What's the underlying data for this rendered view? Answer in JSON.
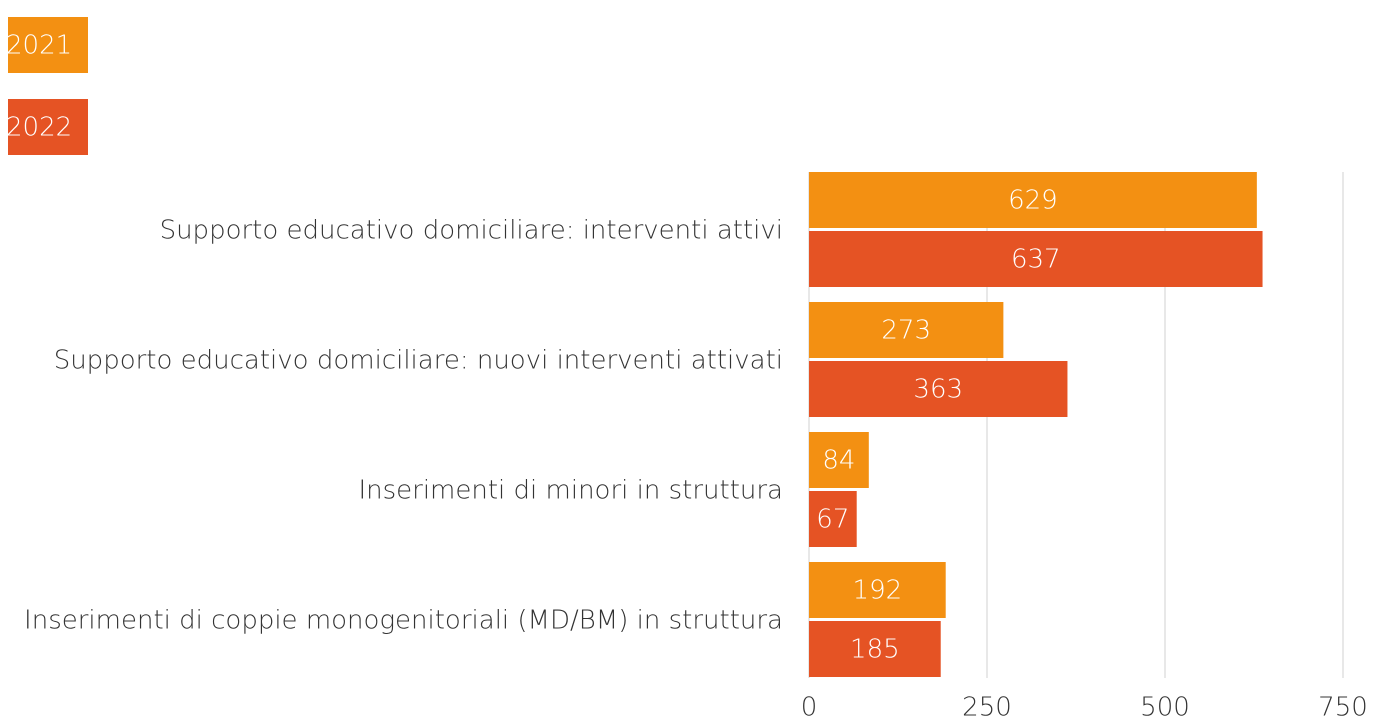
{
  "chart_data": {
    "type": "bar",
    "orientation": "horizontal",
    "categories": [
      "Supporto educativo domiciliare: interventi attivi",
      "Supporto educativo domiciliare: nuovi interventi attivati",
      "Inserimenti di minori in struttura",
      "Inserimenti di coppie monogenitoriali (MD/BM) in struttura"
    ],
    "series": [
      {
        "name": "2021",
        "color": "#f39012",
        "values": [
          629,
          273,
          84,
          192
        ]
      },
      {
        "name": "2022",
        "color": "#e55324",
        "values": [
          637,
          363,
          67,
          185
        ]
      }
    ],
    "xlim": [
      0,
      750
    ],
    "xticks": [
      0,
      250,
      500,
      750
    ],
    "grid": true,
    "legend": "top-left"
  }
}
